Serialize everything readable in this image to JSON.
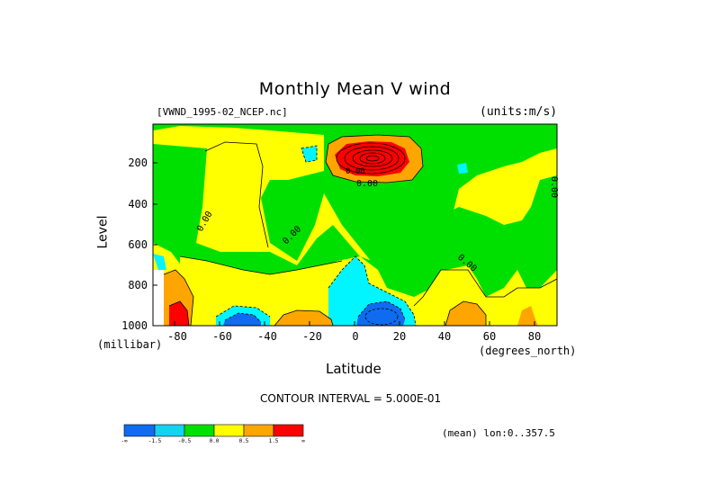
{
  "title": "Monthly Mean V wind",
  "file_label": "[VWND_1995-02_NCEP.nc]",
  "units_label": "(units:m/s)",
  "contour_text": "CONTOUR INTERVAL = 5.000E-01",
  "mean_text": "(mean) lon:0..357.5",
  "chart_data": {
    "type": "heatmap",
    "title": "Monthly Mean V wind",
    "xlabel": "Latitude",
    "ylabel": "Level",
    "x_unit": "(degrees_north)",
    "y_unit": "(millibar)",
    "xlim": [
      -90,
      90
    ],
    "ylim": [
      1000,
      50
    ],
    "x_ticks": [
      "-80",
      "-60",
      "-40",
      "-20",
      "0",
      "20",
      "40",
      "60",
      "80"
    ],
    "y_ticks": [
      "200",
      "400",
      "600",
      "800",
      "1000"
    ],
    "contour_interval": 0.5,
    "contour_labels": [
      "0.00",
      "0.00",
      "0.00",
      "0.00",
      "0.00",
      "0.00"
    ],
    "colorbar": {
      "levels": [
        "-∞",
        "-1.5",
        "-0.5",
        "0.0",
        "0.5",
        "1.5",
        "∞"
      ],
      "colors": [
        "#0f6cf0",
        "#14d2f0",
        "#00f5ff",
        "#00e000",
        "#ffff00",
        "#ffa500",
        "#ff0000"
      ],
      "labels": [
        "-∞",
        "-1.5",
        "-0.5",
        "0.0",
        "0.5",
        "1.5",
        "∞"
      ]
    },
    "features": [
      {
        "name": "upper tropospheric northward max",
        "lat": 10,
        "level": 170,
        "value": 4.5
      },
      {
        "name": "surface southward min",
        "lat": 10,
        "level": 970,
        "value": -2.5
      },
      {
        "name": "surface southward min",
        "lat": -55,
        "level": 990,
        "value": -2.0
      },
      {
        "name": "surface northward max",
        "lat": -85,
        "level": 980,
        "value": 2.5
      }
    ]
  }
}
